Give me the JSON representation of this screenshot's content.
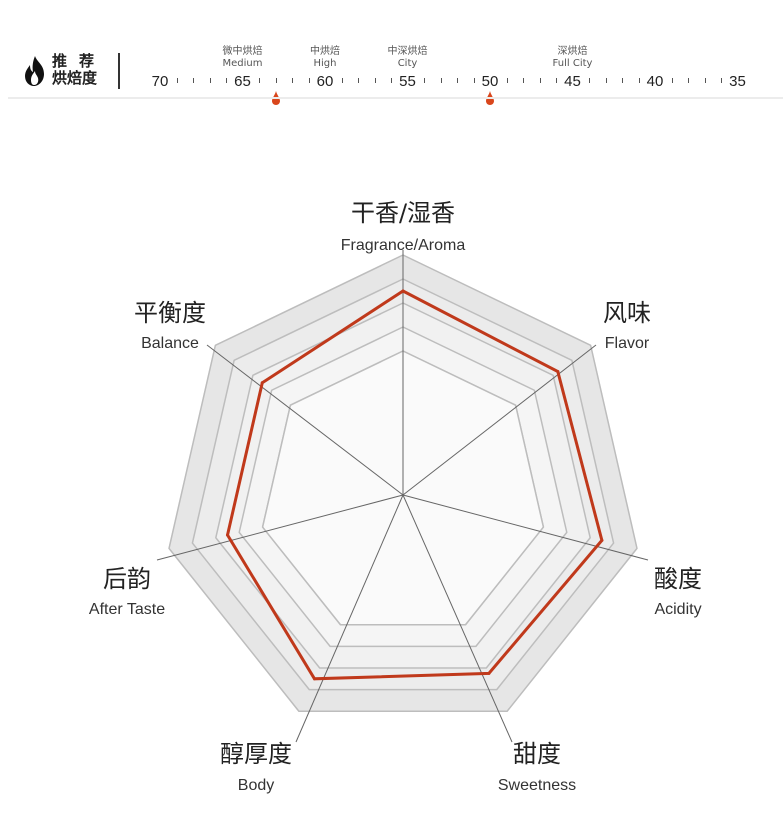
{
  "header": {
    "icon": "flame-icon",
    "title_line1": "推荐",
    "title_line2": "烘焙度"
  },
  "roast_scale": {
    "ticks": [
      "70",
      "65",
      "60",
      "55",
      "50",
      "45",
      "40",
      "35"
    ],
    "levels": [
      {
        "cn": "微中烘焙",
        "en": "Medium",
        "at": 65
      },
      {
        "cn": "中烘焙",
        "en": "High",
        "at": 60
      },
      {
        "cn": "中深烘焙",
        "en": "City",
        "at": 55
      },
      {
        "cn": "深烘焙",
        "en": "Full City",
        "at": 45
      }
    ],
    "recommended_range": [
      63,
      50
    ],
    "accent": "#d9461c"
  },
  "chart_data": {
    "type": "radar",
    "axes": [
      {
        "cn": "干香/湿香",
        "en": "Fragrance/Aroma"
      },
      {
        "cn": "风味",
        "en": "Flavor"
      },
      {
        "cn": "酸度",
        "en": "Acidity"
      },
      {
        "cn": "甜度",
        "en": "Sweetness"
      },
      {
        "cn": "醇厚度",
        "en": "Body"
      },
      {
        "cn": "后韵",
        "en": "After Taste"
      },
      {
        "cn": "平衡度",
        "en": "Balance"
      }
    ],
    "values": [
      8.5,
      8.25,
      8.5,
      8.25,
      8.5,
      7.5,
      7.5
    ],
    "range": [
      0,
      10
    ],
    "rings": [
      6,
      7,
      8,
      9,
      10
    ],
    "line_color": "#c0391b"
  }
}
